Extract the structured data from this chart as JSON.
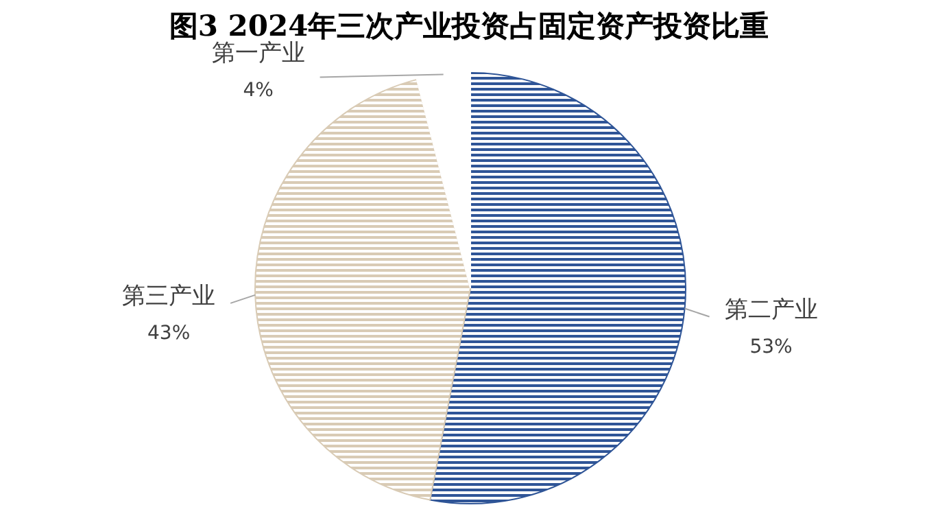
{
  "chart_data": {
    "type": "pie",
    "title": "图3   2024年三次产业投资占固定资产投资比重",
    "categories": [
      "第二产业",
      "第三产业",
      "第一产业"
    ],
    "values": [
      53,
      43,
      4
    ],
    "colors": [
      "#2f5597",
      "#d9cbb5",
      "#ffffff"
    ],
    "value_labels": [
      "53%",
      "43%",
      "4%"
    ]
  }
}
